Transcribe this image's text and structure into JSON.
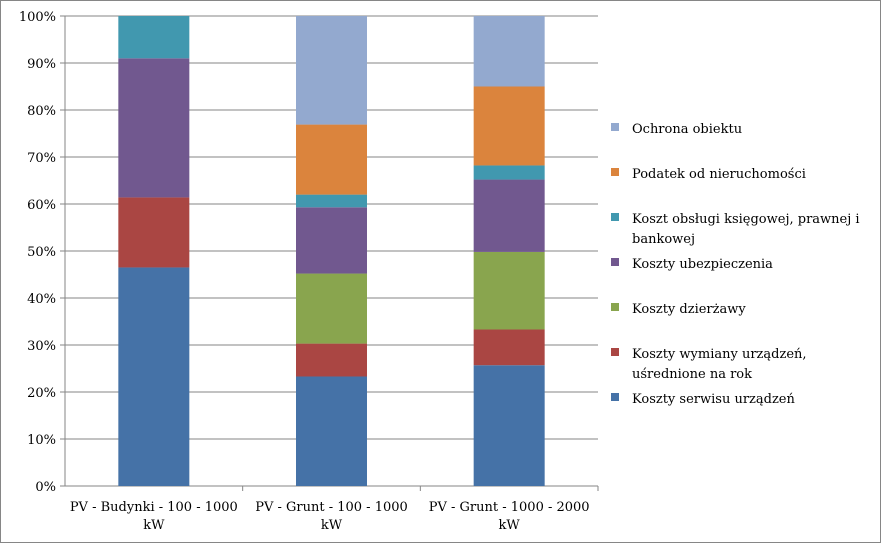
{
  "chart_data": {
    "type": "bar",
    "stacked": true,
    "percent": true,
    "title": "",
    "xlabel": "",
    "ylabel": "",
    "ylim": [
      0,
      100
    ],
    "y_ticks": [
      "0%",
      "10%",
      "20%",
      "30%",
      "40%",
      "50%",
      "60%",
      "70%",
      "80%",
      "90%",
      "100%"
    ],
    "grid": true,
    "legend_position": "right",
    "categories": [
      [
        "PV - Budynki - 100 - 1000",
        "kW"
      ],
      [
        "PV - Grunt - 100 - 1000",
        "kW"
      ],
      [
        "PV - Grunt - 1000 - 2000",
        "kW"
      ]
    ],
    "series": [
      {
        "name": [
          "Koszty serwisu urządzeń"
        ],
        "color": "#4572A7",
        "values": [
          46.5,
          23.3,
          25.7
        ]
      },
      {
        "name": [
          "Koszty wymiany urządzeń,",
          "uśrednione na rok"
        ],
        "color": "#AA4643",
        "values": [
          14.9,
          7.0,
          7.6
        ]
      },
      {
        "name": [
          "Koszty dzierżawy"
        ],
        "color": "#89A54E",
        "values": [
          0,
          14.9,
          16.5
        ]
      },
      {
        "name": [
          "Koszty ubezpieczenia"
        ],
        "color": "#71588F",
        "values": [
          29.6,
          14.1,
          15.4
        ]
      },
      {
        "name": [
          "Koszt obsługi księgowej, prawnej i",
          "bankowej"
        ],
        "color": "#4198AF",
        "values": [
          9.0,
          2.7,
          3.0
        ]
      },
      {
        "name": [
          "Podatek od nieruchomości"
        ],
        "color": "#DB843D",
        "values": [
          0,
          14.9,
          16.8
        ]
      },
      {
        "name": [
          "Ochrona obiektu"
        ],
        "color": "#93A9CF",
        "values": [
          0,
          23.1,
          15.0
        ]
      }
    ]
  }
}
